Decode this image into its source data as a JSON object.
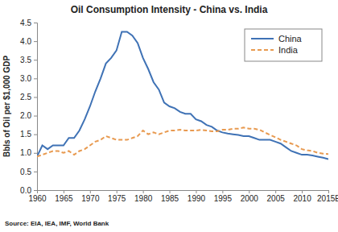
{
  "chart_data": {
    "type": "line",
    "title": "Oil Consumption Intensity - China vs. India",
    "y_label": "Bbls of Oil per $1,000 GDP",
    "source": "Source: EIA, IEA, IMF, World Bank",
    "x": [
      1960,
      1961,
      1962,
      1963,
      1964,
      1965,
      1966,
      1967,
      1968,
      1969,
      1970,
      1971,
      1972,
      1973,
      1974,
      1975,
      1976,
      1977,
      1978,
      1979,
      1980,
      1981,
      1982,
      1983,
      1984,
      1985,
      1986,
      1987,
      1988,
      1989,
      1990,
      1991,
      1992,
      1993,
      1994,
      1995,
      1996,
      1997,
      1998,
      1999,
      2000,
      2001,
      2002,
      2003,
      2004,
      2005,
      2006,
      2007,
      2008,
      2009,
      2010,
      2011,
      2012,
      2013,
      2014,
      2015
    ],
    "series": [
      {
        "name": "China",
        "color": "#3f72b5",
        "line_style": "solid",
        "values": [
          0.9,
          1.2,
          1.1,
          1.2,
          1.2,
          1.2,
          1.4,
          1.4,
          1.6,
          1.9,
          2.25,
          2.65,
          3.0,
          3.4,
          3.55,
          3.75,
          4.25,
          4.25,
          4.15,
          3.95,
          3.55,
          3.25,
          2.9,
          2.7,
          2.35,
          2.25,
          2.2,
          2.1,
          2.05,
          2.05,
          1.9,
          1.85,
          1.75,
          1.7,
          1.6,
          1.55,
          1.52,
          1.5,
          1.48,
          1.45,
          1.45,
          1.4,
          1.35,
          1.35,
          1.35,
          1.3,
          1.25,
          1.15,
          1.05,
          1.0,
          0.95,
          0.95,
          0.93,
          0.9,
          0.87,
          0.83
        ]
      },
      {
        "name": "India",
        "color": "#e89a50",
        "line_style": "dashed",
        "values": [
          0.9,
          0.95,
          1.0,
          1.05,
          1.05,
          1.0,
          1.05,
          0.95,
          1.05,
          1.1,
          1.2,
          1.3,
          1.35,
          1.45,
          1.4,
          1.35,
          1.35,
          1.35,
          1.4,
          1.45,
          1.6,
          1.5,
          1.55,
          1.5,
          1.55,
          1.6,
          1.6,
          1.62,
          1.6,
          1.6,
          1.6,
          1.62,
          1.6,
          1.58,
          1.58,
          1.62,
          1.62,
          1.65,
          1.65,
          1.68,
          1.65,
          1.65,
          1.62,
          1.55,
          1.48,
          1.42,
          1.35,
          1.3,
          1.25,
          1.2,
          1.1,
          1.07,
          1.05,
          1.0,
          0.98,
          0.97
        ]
      }
    ],
    "xlim": [
      1960,
      2015
    ],
    "xticks": [
      1960,
      1965,
      1970,
      1975,
      1980,
      1985,
      1990,
      1995,
      2000,
      2005,
      2010,
      {
        "value": 2015,
        "label": "2015E"
      }
    ],
    "ylim": [
      0,
      4.5
    ],
    "yticks": [
      {
        "value": 0,
        "label": "0.0"
      },
      0.5,
      {
        "value": 1,
        "label": "1.0"
      },
      1.5,
      {
        "value": 2,
        "label": "2.0"
      },
      2.5,
      {
        "value": 3,
        "label": "3.0"
      },
      3.5,
      {
        "value": 4,
        "label": "4.0"
      },
      4.5
    ],
    "grid": false,
    "legend": "upper right"
  }
}
